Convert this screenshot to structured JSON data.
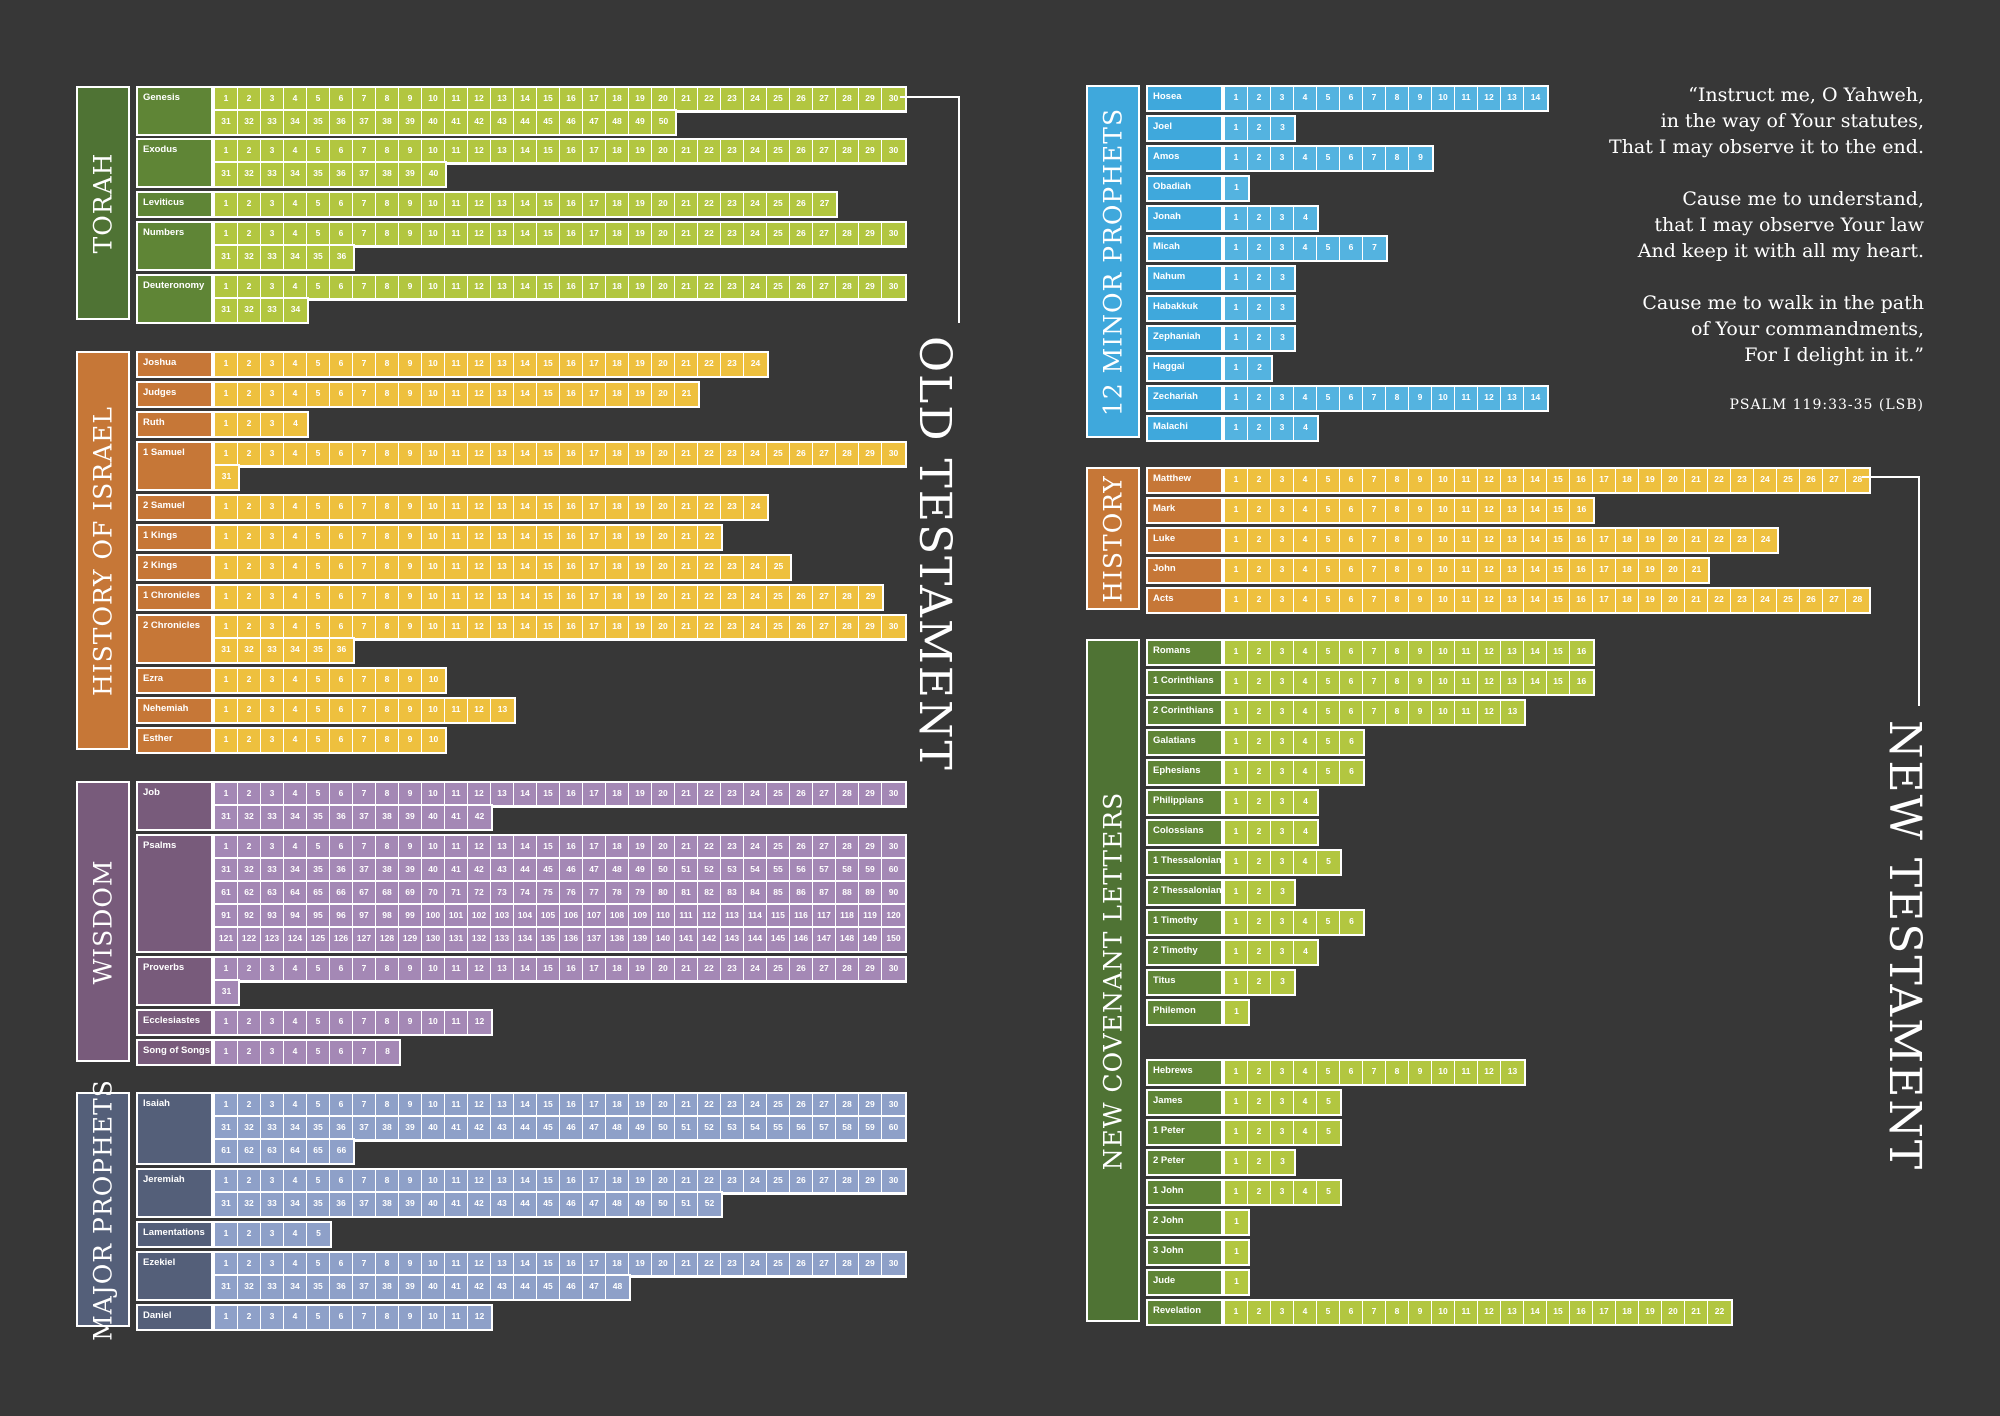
{
  "colors": {
    "torah_label": "#4f7334",
    "torah_book": "#5f8536",
    "torah_cell": "#b2c640",
    "history_label": "#c67737",
    "history_book": "#c67737",
    "history_cell": "#eec03e",
    "wisdom_label": "#785b7b",
    "wisdom_book": "#785b7b",
    "wisdom_cell": "#a488b5",
    "major_label": "#545f79",
    "major_book": "#545f79",
    "major_cell": "#8ea0c8",
    "minor_label": "#3fa8dc",
    "minor_book": "#3fa8dc",
    "minor_cell": "#54b3e0",
    "nthistory_label": "#c67737",
    "nthistory_book": "#c67737",
    "nthistory_cell": "#eec03e",
    "letters_label": "#4f7334",
    "letters_book": "#5f8536",
    "letters_cell": "#b2c640"
  },
  "testaments": {
    "old": "OLD TESTAMENT",
    "new": "NEW TESTAMENT"
  },
  "sections": [
    {
      "id": "torah",
      "label": "TORAH",
      "books": [
        {
          "name": "Genesis",
          "chapters": 50
        },
        {
          "name": "Exodus",
          "chapters": 40
        },
        {
          "name": "Leviticus",
          "chapters": 27
        },
        {
          "name": "Numbers",
          "chapters": 36
        },
        {
          "name": "Deuteronomy",
          "chapters": 34
        }
      ]
    },
    {
      "id": "history",
      "label": "HISTORY OF ISRAEL",
      "books": [
        {
          "name": "Joshua",
          "chapters": 24
        },
        {
          "name": "Judges",
          "chapters": 21
        },
        {
          "name": "Ruth",
          "chapters": 4
        },
        {
          "name": "1 Samuel",
          "chapters": 31
        },
        {
          "name": "2 Samuel",
          "chapters": 24
        },
        {
          "name": "1 Kings",
          "chapters": 22
        },
        {
          "name": "2 Kings",
          "chapters": 25
        },
        {
          "name": "1 Chronicles",
          "chapters": 29
        },
        {
          "name": "2 Chronicles",
          "chapters": 36
        },
        {
          "name": "Ezra",
          "chapters": 10
        },
        {
          "name": "Nehemiah",
          "chapters": 13
        },
        {
          "name": "Esther",
          "chapters": 10
        }
      ]
    },
    {
      "id": "wisdom",
      "label": "WISDOM",
      "books": [
        {
          "name": "Job",
          "chapters": 42
        },
        {
          "name": "Psalms",
          "chapters": 150
        },
        {
          "name": "Proverbs",
          "chapters": 31
        },
        {
          "name": "Ecclesiastes",
          "chapters": 12
        },
        {
          "name": "Song of Songs",
          "chapters": 8
        }
      ]
    },
    {
      "id": "major",
      "label": "MAJOR PROPHETS",
      "books": [
        {
          "name": "Isaiah",
          "chapters": 66
        },
        {
          "name": "Jeremiah",
          "chapters": 52
        },
        {
          "name": "Lamentations",
          "chapters": 5
        },
        {
          "name": "Ezekiel",
          "chapters": 48
        },
        {
          "name": "Daniel",
          "chapters": 12
        }
      ]
    },
    {
      "id": "minor",
      "label": "12 MINOR PROPHETS",
      "books": [
        {
          "name": "Hosea",
          "chapters": 14
        },
        {
          "name": "Joel",
          "chapters": 3
        },
        {
          "name": "Amos",
          "chapters": 9
        },
        {
          "name": "Obadiah",
          "chapters": 1
        },
        {
          "name": "Jonah",
          "chapters": 4
        },
        {
          "name": "Micah",
          "chapters": 7
        },
        {
          "name": "Nahum",
          "chapters": 3
        },
        {
          "name": "Habakkuk",
          "chapters": 3
        },
        {
          "name": "Zephaniah",
          "chapters": 3
        },
        {
          "name": "Haggai",
          "chapters": 2
        },
        {
          "name": "Zechariah",
          "chapters": 14
        },
        {
          "name": "Malachi",
          "chapters": 4
        }
      ]
    },
    {
      "id": "nthistory",
      "label": "HISTORY",
      "books": [
        {
          "name": "Matthew",
          "chapters": 28
        },
        {
          "name": "Mark",
          "chapters": 16
        },
        {
          "name": "Luke",
          "chapters": 24
        },
        {
          "name": "John",
          "chapters": 21
        },
        {
          "name": "Acts",
          "chapters": 28
        }
      ]
    },
    {
      "id": "letters",
      "label": "NEW COVENANT LETTERS",
      "books": [
        {
          "name": "Romans",
          "chapters": 16
        },
        {
          "name": "1 Corinthians",
          "chapters": 16
        },
        {
          "name": "2 Corinthians",
          "chapters": 13
        },
        {
          "name": "Galatians",
          "chapters": 6
        },
        {
          "name": "Ephesians",
          "chapters": 6
        },
        {
          "name": "Philippians",
          "chapters": 4
        },
        {
          "name": "Colossians",
          "chapters": 4
        },
        {
          "name": "1 Thessalonians",
          "chapters": 5
        },
        {
          "name": "2 Thessalonians",
          "chapters": 3
        },
        {
          "name": "1 Timothy",
          "chapters": 6
        },
        {
          "name": "2 Timothy",
          "chapters": 4
        },
        {
          "name": "Titus",
          "chapters": 3
        },
        {
          "name": "Philemon",
          "chapters": 1
        },
        {
          "name": "Hebrews",
          "chapters": 13
        },
        {
          "name": "James",
          "chapters": 5
        },
        {
          "name": "1 Peter",
          "chapters": 5
        },
        {
          "name": "2 Peter",
          "chapters": 3
        },
        {
          "name": "1 John",
          "chapters": 5
        },
        {
          "name": "2 John",
          "chapters": 1
        },
        {
          "name": "3 John",
          "chapters": 1
        },
        {
          "name": "Jude",
          "chapters": 1
        },
        {
          "name": "Revelation",
          "chapters": 22
        }
      ]
    }
  ],
  "quote": {
    "stanza1": [
      "“Instruct me, O Yahweh,",
      "in the way of Your statutes,",
      "That I may observe it to the end."
    ],
    "stanza2": [
      "Cause me to understand,",
      "that I may observe Your law",
      "And keep it with all my heart."
    ],
    "stanza3": [
      "Cause me to walk in the path",
      "of Your commandments,",
      "For I delight in it.”"
    ],
    "reference": "PSALM 119:33-35 (LSB)"
  }
}
